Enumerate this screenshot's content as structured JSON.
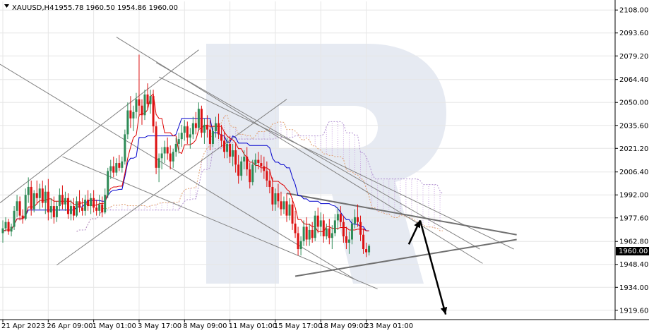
{
  "header": {
    "symbol": "XAUUSD,H4",
    "ohlc": "1955.78 1960.50 1954.86 1960.00"
  },
  "colors": {
    "bull": "#2e8b57",
    "bear": "#dd1111",
    "tenkan": "#dd0000",
    "kijun": "#0000cc",
    "span_a": "#e0a070",
    "span_b": "#b090d0",
    "cloud_hatch": "#c8a0e0",
    "channel": "#808080",
    "triangle": "#707070",
    "arrow": "#000000",
    "grid": "#e6e6e6",
    "axis": "#000000",
    "watermark": "#e6eaf2",
    "price_tag_bg": "#000000",
    "price_tag_fg": "#ffffff"
  },
  "chart_data": {
    "type": "candlestick",
    "title": "XAUUSD,H4",
    "y_ticks": [
      2108.0,
      2093.6,
      2079.2,
      2064.4,
      2050.0,
      2035.6,
      2021.2,
      2006.4,
      1992.0,
      1977.6,
      1962.8,
      1948.4,
      1934.0,
      1919.6
    ],
    "y_tick_labels": [
      "2108.00",
      "2093.60",
      "2079.20",
      "2064.40",
      "2050.00",
      "2035.60",
      "2021.20",
      "2006.40",
      "1992.00",
      "1977.60",
      "1962.80",
      "1948.40",
      "1934.00",
      "1919.60"
    ],
    "ylim": [
      1914.2,
      2113.4
    ],
    "x_ticks": [
      "21 Apr 2023",
      "26 Apr 09:00",
      "1 May 01:00",
      "3 May 17:00",
      "8 May 09:00",
      "11 May 01:00",
      "15 May 17:00",
      "18 May 09:00",
      "23 May 01:00"
    ],
    "x_tick_index": [
      0,
      16,
      32,
      48,
      64,
      80,
      96,
      112,
      128
    ],
    "current_price": "1960.00",
    "candles": [
      [
        1968,
        1976,
        1962,
        1971
      ],
      [
        1971,
        1978,
        1969,
        1975
      ],
      [
        1975,
        1977,
        1967,
        1969
      ],
      [
        1969,
        1974,
        1966,
        1972
      ],
      [
        1972,
        1985,
        1970,
        1982
      ],
      [
        1982,
        1992,
        1978,
        1988
      ],
      [
        1988,
        1991,
        1976,
        1979
      ],
      [
        1979,
        1983,
        1974,
        1977
      ],
      [
        1977,
        1996,
        1976,
        1992
      ],
      [
        1992,
        2003,
        1987,
        1997
      ],
      [
        1997,
        2001,
        1979,
        1983
      ],
      [
        1983,
        1995,
        1981,
        1993
      ],
      [
        1993,
        2001,
        1986,
        1990
      ],
      [
        1990,
        1999,
        1983,
        1996
      ],
      [
        1996,
        2001,
        1984,
        1987
      ],
      [
        1987,
        1998,
        1980,
        1994
      ],
      [
        1994,
        2002,
        1976,
        1981
      ],
      [
        1981,
        1990,
        1977,
        1985
      ],
      [
        1985,
        1991,
        1974,
        1978
      ],
      [
        1978,
        1988,
        1975,
        1985
      ],
      [
        1985,
        1996,
        1982,
        1992
      ],
      [
        1992,
        1998,
        1983,
        1986
      ],
      [
        1986,
        1994,
        1982,
        1990
      ],
      [
        1990,
        1993,
        1977,
        1980
      ],
      [
        1980,
        1989,
        1976,
        1985
      ],
      [
        1985,
        1990,
        1976,
        1979
      ],
      [
        1979,
        1991,
        1978,
        1988
      ],
      [
        1988,
        1995,
        1981,
        1984
      ],
      [
        1984,
        1990,
        1979,
        1982
      ],
      [
        1982,
        1992,
        1979,
        1989
      ],
      [
        1989,
        1995,
        1982,
        1985
      ],
      [
        1985,
        1993,
        1980,
        1990
      ],
      [
        1990,
        1995,
        1981,
        1984
      ],
      [
        1984,
        1989,
        1979,
        1982
      ],
      [
        1982,
        1992,
        1979,
        1986
      ],
      [
        1986,
        1991,
        1978,
        1981
      ],
      [
        1981,
        1996,
        1980,
        1992
      ],
      [
        1992,
        2009,
        1990,
        2007
      ],
      [
        2007,
        2014,
        2002,
        2010
      ],
      [
        2010,
        2016,
        2003,
        2006
      ],
      [
        2006,
        2015,
        2004,
        2012
      ],
      [
        2012,
        2017,
        2007,
        2009
      ],
      [
        2009,
        2016,
        2006,
        2013
      ],
      [
        2013,
        2033,
        2011,
        2030
      ],
      [
        2030,
        2050,
        2027,
        2045
      ],
      [
        2045,
        2054,
        2034,
        2040
      ],
      [
        2040,
        2048,
        2032,
        2044
      ],
      [
        2044,
        2056,
        2040,
        2052
      ],
      [
        2052,
        2080,
        2041,
        2048
      ],
      [
        2048,
        2052,
        2036,
        2042
      ],
      [
        2042,
        2058,
        2039,
        2055
      ],
      [
        2055,
        2062,
        2046,
        2049
      ],
      [
        2049,
        2058,
        2043,
        2054
      ],
      [
        2054,
        2058,
        2031,
        2035
      ],
      [
        2035,
        2038,
        2005,
        2009
      ],
      [
        2009,
        2018,
        2000,
        2015
      ],
      [
        2015,
        2022,
        2008,
        2018
      ],
      [
        2018,
        2026,
        2012,
        2022
      ],
      [
        2022,
        2028,
        2014,
        2018
      ],
      [
        2018,
        2023,
        2008,
        2013
      ],
      [
        2013,
        2021,
        2009,
        2019
      ],
      [
        2019,
        2028,
        2016,
        2024
      ],
      [
        2024,
        2031,
        2018,
        2027
      ],
      [
        2027,
        2036,
        2022,
        2031
      ],
      [
        2031,
        2039,
        2026,
        2035
      ],
      [
        2035,
        2038,
        2024,
        2028
      ],
      [
        2028,
        2034,
        2021,
        2030
      ],
      [
        2030,
        2041,
        2027,
        2037
      ],
      [
        2037,
        2044,
        2030,
        2034
      ],
      [
        2034,
        2050,
        2032,
        2046
      ],
      [
        2046,
        2048,
        2028,
        2031
      ],
      [
        2031,
        2040,
        2024,
        2036
      ],
      [
        2036,
        2042,
        2028,
        2033
      ],
      [
        2033,
        2039,
        2020,
        2024
      ],
      [
        2024,
        2035,
        2022,
        2032
      ],
      [
        2032,
        2041,
        2028,
        2037
      ],
      [
        2037,
        2043,
        2027,
        2030
      ],
      [
        2030,
        2036,
        2022,
        2026
      ],
      [
        2026,
        2032,
        2015,
        2019
      ],
      [
        2019,
        2028,
        2015,
        2024
      ],
      [
        2024,
        2029,
        2012,
        2016
      ],
      [
        2016,
        2024,
        2010,
        2020
      ],
      [
        2020,
        2025,
        2006,
        2011
      ],
      [
        2011,
        2017,
        1999,
        2004
      ],
      [
        2004,
        2016,
        2001,
        2013
      ],
      [
        2013,
        2020,
        2008,
        2016
      ],
      [
        2016,
        2022,
        2004,
        2008
      ],
      [
        2008,
        2012,
        1996,
        2000
      ],
      [
        2000,
        2014,
        1998,
        2011
      ],
      [
        2011,
        2018,
        2006,
        2014
      ],
      [
        2014,
        2019,
        2008,
        2012
      ],
      [
        2012,
        2017,
        2006,
        2010
      ],
      [
        2010,
        2016,
        2002,
        2007
      ],
      [
        2007,
        2013,
        1997,
        2001
      ],
      [
        2001,
        2008,
        1993,
        1997
      ],
      [
        1997,
        2003,
        1982,
        1986
      ],
      [
        1986,
        1996,
        1982,
        1993
      ],
      [
        1993,
        1999,
        1984,
        1988
      ],
      [
        1988,
        1994,
        1979,
        1983
      ],
      [
        1983,
        1991,
        1980,
        1988
      ],
      [
        1988,
        1993,
        1975,
        1979
      ],
      [
        1979,
        1990,
        1976,
        1986
      ],
      [
        1986,
        1990,
        1970,
        1974
      ],
      [
        1974,
        1982,
        1965,
        1968
      ],
      [
        1968,
        1972,
        1954,
        1958
      ],
      [
        1958,
        1966,
        1954,
        1963
      ],
      [
        1963,
        1976,
        1960,
        1972
      ],
      [
        1972,
        1978,
        1960,
        1964
      ],
      [
        1964,
        1974,
        1960,
        1970
      ],
      [
        1970,
        1975,
        1962,
        1965
      ],
      [
        1965,
        1982,
        1963,
        1979
      ],
      [
        1979,
        1984,
        1968,
        1972
      ],
      [
        1972,
        1981,
        1966,
        1976
      ],
      [
        1976,
        1980,
        1962,
        1966
      ],
      [
        1966,
        1974,
        1964,
        1971
      ],
      [
        1971,
        1977,
        1961,
        1965
      ],
      [
        1965,
        1973,
        1958,
        1968
      ],
      [
        1968,
        1980,
        1966,
        1976
      ],
      [
        1976,
        1984,
        1970,
        1980
      ],
      [
        1980,
        1985,
        1972,
        1975
      ],
      [
        1975,
        1979,
        1962,
        1966
      ],
      [
        1966,
        1972,
        1958,
        1962
      ],
      [
        1962,
        1969,
        1955,
        1964
      ],
      [
        1964,
        1977,
        1961,
        1974
      ],
      [
        1974,
        1983,
        1971,
        1978
      ],
      [
        1978,
        1986,
        1972,
        1975
      ],
      [
        1975,
        1979,
        1963,
        1967
      ],
      [
        1967,
        1971,
        1955,
        1958
      ],
      [
        1958,
        1962,
        1953,
        1956
      ],
      [
        1956,
        1961,
        1954,
        1960
      ]
    ]
  }
}
